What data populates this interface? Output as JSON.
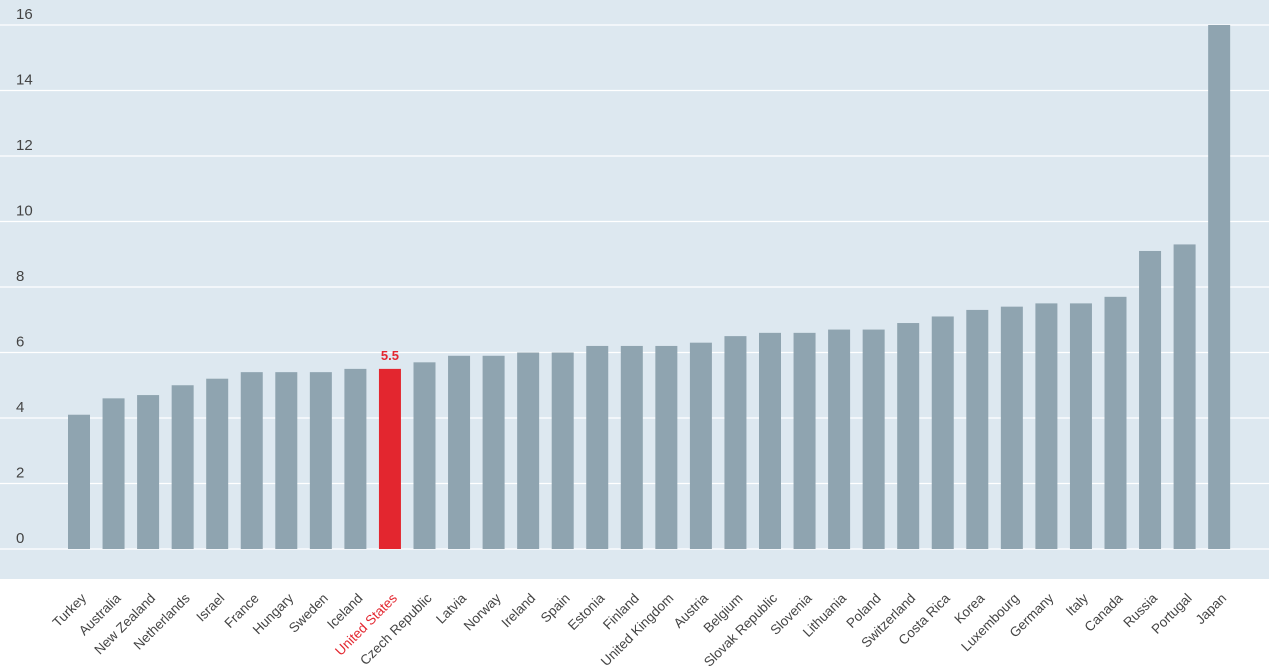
{
  "chart_data": {
    "type": "bar",
    "categories": [
      "Turkey",
      "Australia",
      "New Zealand",
      "Netherlands",
      "Israel",
      "France",
      "Hungary",
      "Sweden",
      "Iceland",
      "United States",
      "Czech Republic",
      "Latvia",
      "Norway",
      "Ireland",
      "Spain",
      "Estonia",
      "Finland",
      "United Kingdom",
      "Austria",
      "Belgium",
      "Slovak Republic",
      "Slovenia",
      "Lithuania",
      "Poland",
      "Switzerland",
      "Costa Rica",
      "Korea",
      "Luxembourg",
      "Germany",
      "Italy",
      "Canada",
      "Russia",
      "Portugal",
      "Japan"
    ],
    "values": [
      4.1,
      4.6,
      4.7,
      5.0,
      5.2,
      5.4,
      5.4,
      5.4,
      5.5,
      5.5,
      5.7,
      5.9,
      5.9,
      6.0,
      6.0,
      6.2,
      6.2,
      6.2,
      6.3,
      6.5,
      6.6,
      6.6,
      6.7,
      6.7,
      6.9,
      7.1,
      7.3,
      7.4,
      7.5,
      7.5,
      7.7,
      9.1,
      9.3,
      16.0
    ],
    "highlight": {
      "category": "United States",
      "label": "5.5",
      "color": "#e3262f"
    },
    "yticks": [
      "0",
      "2",
      "4",
      "6",
      "8",
      "10",
      "12",
      "14",
      "16"
    ],
    "ylim": [
      0,
      16
    ],
    "grid": true,
    "colors": {
      "bar": "#8fa4b0",
      "highlight": "#e3262f",
      "plot_background": "#dde8f0",
      "gridline": "#ffffff",
      "text": "#444444"
    },
    "title": "",
    "xlabel": "",
    "ylabel": ""
  }
}
